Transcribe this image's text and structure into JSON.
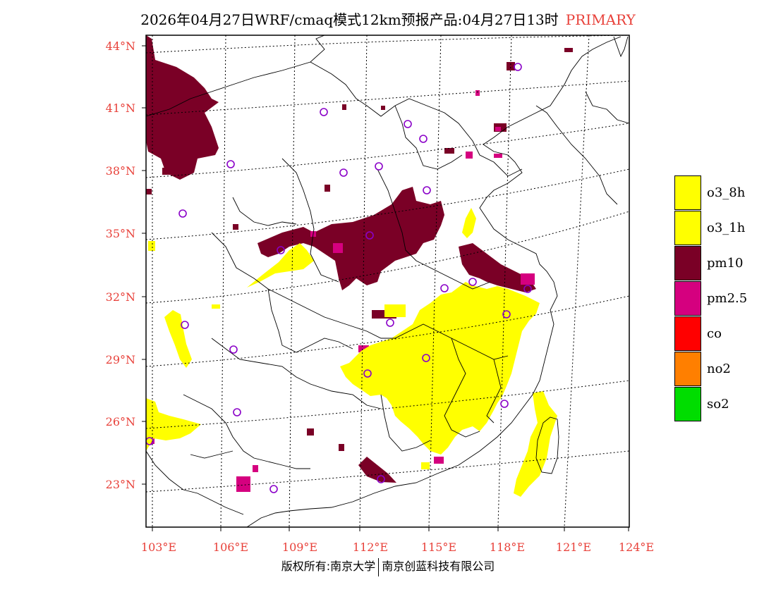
{
  "header": {
    "title": "2026年04月27日WRF/cmaq模式12km预报产品:04月27日13时",
    "status": "PRIMARY"
  },
  "axes": {
    "lat_labels": [
      "44°N",
      "41°N",
      "38°N",
      "35°N",
      "32°N",
      "29°N",
      "26°N",
      "23°N"
    ],
    "lon_labels": [
      "103°E",
      "106°E",
      "109°E",
      "112°E",
      "115°E",
      "118°E",
      "121°E",
      "124°E"
    ]
  },
  "legend": [
    {
      "label": "o3_8h",
      "color": "#ffff00"
    },
    {
      "label": "o3_1h",
      "color": "#ffff00"
    },
    {
      "label": "pm10",
      "color": "#7a0026"
    },
    {
      "label": "pm2.5",
      "color": "#d5007f"
    },
    {
      "label": "co",
      "color": "#ff0000"
    },
    {
      "label": "no2",
      "color": "#ff7f00"
    },
    {
      "label": "so2",
      "color": "#00dd00"
    }
  ],
  "footer": {
    "left": "版权所有:南京大学",
    "right": "南京创蓝科技有限公司"
  }
}
